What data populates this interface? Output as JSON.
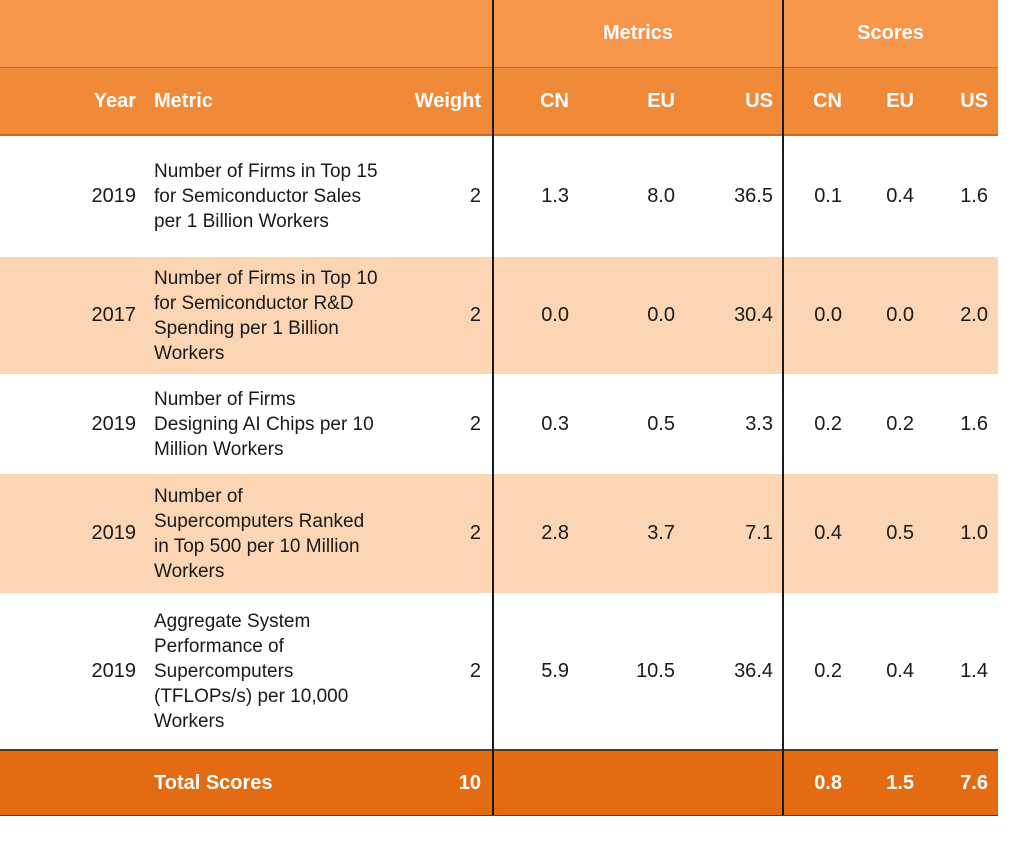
{
  "header": {
    "group_metrics": "Metrics",
    "group_scores": "Scores",
    "columns": {
      "year": "Year",
      "metric": "Metric",
      "weight": "Weight",
      "cn": "CN",
      "eu": "EU",
      "us": "US",
      "score_cn": "CN",
      "score_eu": "EU",
      "score_us": "US"
    }
  },
  "rows": [
    {
      "year": "2019",
      "metric": "Number of Firms in Top 15 for Semiconductor Sales per 1 Billion Workers",
      "weight": "2",
      "cn": "1.3",
      "eu": "8.0",
      "us": "36.5",
      "score_cn": "0.1",
      "score_eu": "0.4",
      "score_us": "1.6"
    },
    {
      "year": "2017",
      "metric": "Number of Firms in Top 10 for Semiconductor R&D Spending per 1 Billion Workers",
      "weight": "2",
      "cn": "0.0",
      "eu": "0.0",
      "us": "30.4",
      "score_cn": "0.0",
      "score_eu": "0.0",
      "score_us": "2.0"
    },
    {
      "year": "2019",
      "metric": "Number of Firms Designing AI Chips per 10 Million Workers",
      "weight": "2",
      "cn": "0.3",
      "eu": "0.5",
      "us": "3.3",
      "score_cn": "0.2",
      "score_eu": "0.2",
      "score_us": "1.6"
    },
    {
      "year": "2019",
      "metric": "Number of Supercomputers Ranked in Top 500 per 10 Million Workers",
      "weight": "2",
      "cn": "2.8",
      "eu": "3.7",
      "us": "7.1",
      "score_cn": "0.4",
      "score_eu": "0.5",
      "score_us": "1.0"
    },
    {
      "year": "2019",
      "metric": "Aggregate System Performance of Supercomputers (TFLOPs/s) per 10,000 Workers",
      "weight": "2",
      "cn": "5.9",
      "eu": "10.5",
      "us": "36.4",
      "score_cn": "0.2",
      "score_eu": "0.4",
      "score_us": "1.4"
    }
  ],
  "total": {
    "label": "Total Scores",
    "weight": "10",
    "score_cn": "0.8",
    "score_eu": "1.5",
    "score_us": "7.6"
  },
  "colors": {
    "header_top": "#f7954a",
    "header_columns": "#f08a38",
    "row_alt": "#fbd5b4",
    "total_row": "#e36b12"
  }
}
